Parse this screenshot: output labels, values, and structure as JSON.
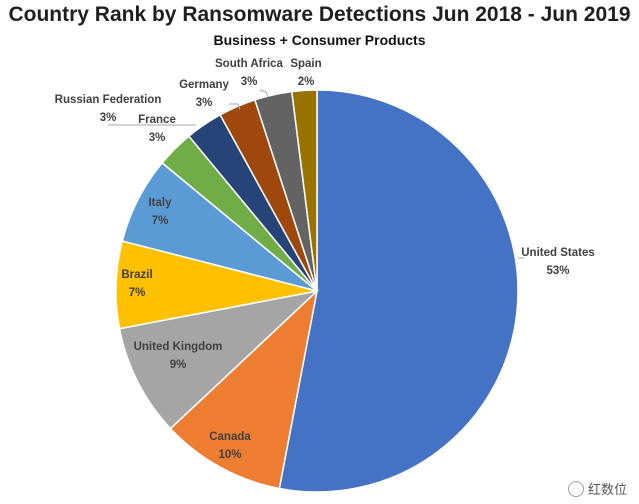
{
  "chart_data": {
    "type": "pie",
    "title": "Country Rank by Ransomware Detections Jun 2018 - Jun 2019",
    "subtitle": "Business + Consumer Products",
    "slices": [
      {
        "label": "United States",
        "value": 53,
        "display": "53%",
        "color": "#4472C4"
      },
      {
        "label": "Canada",
        "value": 10,
        "display": "10%",
        "color": "#ED7D31"
      },
      {
        "label": "United Kingdom",
        "value": 9,
        "display": "9%",
        "color": "#A5A5A5"
      },
      {
        "label": "Brazil",
        "value": 7,
        "display": "7%",
        "color": "#FFC000"
      },
      {
        "label": "Italy",
        "value": 7,
        "display": "7%",
        "color": "#5B9BD5"
      },
      {
        "label": "France",
        "value": 3,
        "display": "3%",
        "color": "#70AD47"
      },
      {
        "label": "Russian Federation",
        "value": 3,
        "display": "3%",
        "color": "#264478"
      },
      {
        "label": "Germany",
        "value": 3,
        "display": "3%",
        "color": "#9E480E"
      },
      {
        "label": "South Africa",
        "value": 3,
        "display": "3%",
        "color": "#636363"
      },
      {
        "label": "Spain",
        "value": 2,
        "display": "2%",
        "color": "#997300"
      }
    ]
  },
  "watermark": "红数位"
}
